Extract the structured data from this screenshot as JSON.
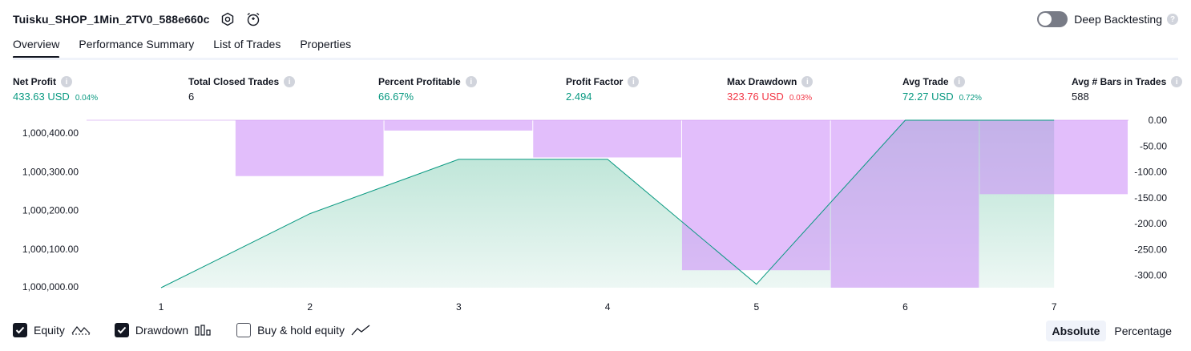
{
  "header": {
    "title": "Tuisku_SHOP_1Min_2TV0_588e660c",
    "deep_backtesting_label": "Deep Backtesting"
  },
  "tabs": [
    {
      "label": "Overview",
      "active": true
    },
    {
      "label": "Performance Summary"
    },
    {
      "label": "List of Trades"
    },
    {
      "label": "Properties"
    }
  ],
  "metrics": [
    {
      "label": "Net Profit",
      "value": "433.63 USD",
      "pct": "0.04%",
      "color": "#089981"
    },
    {
      "label": "Total Closed Trades",
      "value": "6",
      "pct": "",
      "color": "#131722"
    },
    {
      "label": "Percent Profitable",
      "value": "66.67%",
      "pct": "",
      "color": "#089981"
    },
    {
      "label": "Profit Factor",
      "value": "2.494",
      "pct": "",
      "color": "#089981"
    },
    {
      "label": "Max Drawdown",
      "value": "323.76 USD",
      "pct": "0.03%",
      "color": "#f23645"
    },
    {
      "label": "Avg Trade",
      "value": "72.27 USD",
      "pct": "0.72%",
      "color": "#089981"
    },
    {
      "label": "Avg # Bars in Trades",
      "value": "588",
      "pct": "",
      "color": "#131722"
    }
  ],
  "chart_data": {
    "type": "area",
    "x": [
      1,
      2,
      3,
      4,
      5,
      6,
      7
    ],
    "xticks": [
      "1",
      "2",
      "3",
      "4",
      "5",
      "6",
      "7"
    ],
    "left_axis": {
      "ticks": [
        "1,000,400.00",
        "1,000,300.00",
        "1,000,200.00",
        "1,000,100.00",
        "1,000,000.00"
      ],
      "ylim": [
        1000000,
        1000433.63
      ]
    },
    "right_axis": {
      "ticks": [
        "0.00",
        "-50.00",
        "-100.00",
        "-150.00",
        "-200.00",
        "-250.00",
        "-300.00"
      ],
      "ylim": [
        -323.76,
        0
      ]
    },
    "series": [
      {
        "name": "Equity",
        "axis": "left",
        "color": "#089981",
        "values": [
          1000000,
          1000191.7,
          1000332.4,
          1000332.4,
          1000009.0,
          1000433.63,
          1000433.63
        ]
      },
      {
        "name": "Drawdown",
        "axis": "right",
        "color": "#ce93f8",
        "values": [
          0,
          -108,
          -20,
          -72,
          -290,
          -323.76,
          -143
        ]
      }
    ]
  },
  "legend": [
    {
      "label": "Equity",
      "checked": true
    },
    {
      "label": "Drawdown",
      "checked": true
    },
    {
      "label": "Buy & hold equity",
      "checked": false
    }
  ],
  "mode": {
    "options": [
      "Absolute",
      "Percentage"
    ],
    "selected": "Absolute"
  }
}
